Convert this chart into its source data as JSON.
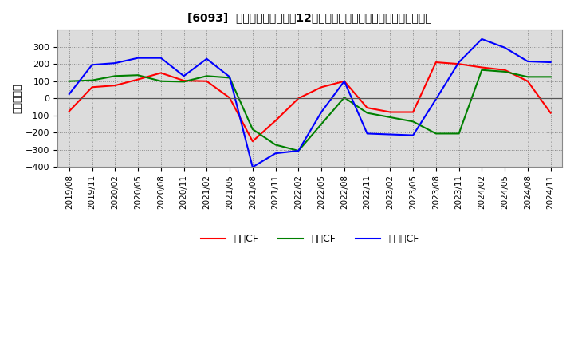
{
  "title": "[6093]  キャッシュフローの12か月移動合計の対前年同期増減額の推移",
  "ylabel": "（百万円）",
  "ylim": [
    -400,
    400
  ],
  "yticks": [
    -400,
    -300,
    -200,
    -100,
    0,
    100,
    200,
    300
  ],
  "background_color": "#ffffff",
  "plot_bg_color": "#dcdcdc",
  "x_labels": [
    "2019/08",
    "2019/11",
    "2020/02",
    "2020/05",
    "2020/08",
    "2020/11",
    "2021/02",
    "2021/05",
    "2021/08",
    "2021/11",
    "2022/02",
    "2022/05",
    "2022/08",
    "2022/11",
    "2023/02",
    "2023/05",
    "2023/08",
    "2023/11",
    "2024/02",
    "2024/05",
    "2024/08",
    "2024/11"
  ],
  "operating_cf": [
    -75,
    65,
    75,
    110,
    148,
    103,
    100,
    3,
    -250,
    -130,
    0,
    65,
    100,
    -55,
    -80,
    -80,
    210,
    200,
    180,
    165,
    100,
    -85
  ],
  "investing_cf": [
    100,
    105,
    130,
    135,
    100,
    97,
    130,
    120,
    -180,
    -270,
    -305,
    -150,
    5,
    -85,
    -110,
    -135,
    -205,
    -205,
    165,
    155,
    125,
    125
  ],
  "free_cf": [
    25,
    195,
    205,
    235,
    235,
    130,
    230,
    125,
    -400,
    -320,
    -305,
    -80,
    100,
    -205,
    -210,
    -215,
    -5,
    210,
    345,
    295,
    215,
    210
  ],
  "operating_color": "#ff0000",
  "investing_color": "#008000",
  "free_color": "#0000ff",
  "legend_labels": [
    "営業CF",
    "投資CF",
    "フリーCF"
  ]
}
